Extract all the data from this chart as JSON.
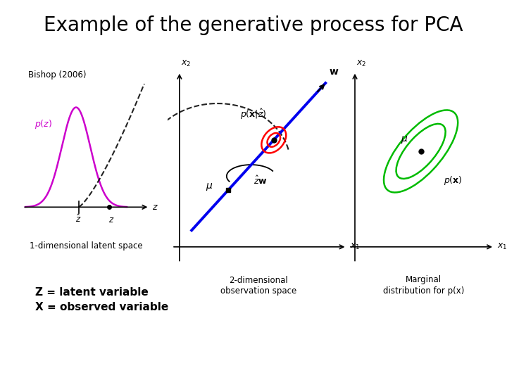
{
  "title": "Example of the generative process for PCA",
  "title_fontsize": 20,
  "bishop_label": "Bishop (2006)",
  "panel1_label": "1-dimensional latent space",
  "panel2_label": "2-dimensional\nobservation space",
  "panel3_label": "Marginal\ndistribution for p(x)",
  "footnote1": "Z = latent variable",
  "footnote2": "X = observed variable",
  "bg_color": "#ffffff",
  "gaussian_color": "#cc00cc",
  "line_color": "#0000ee",
  "ellipse_color_red": "#ff0000",
  "ellipse_color_green": "#00bb00",
  "dashed_color": "#222222",
  "dot_color": "#000000",
  "axis_color": "#000000"
}
